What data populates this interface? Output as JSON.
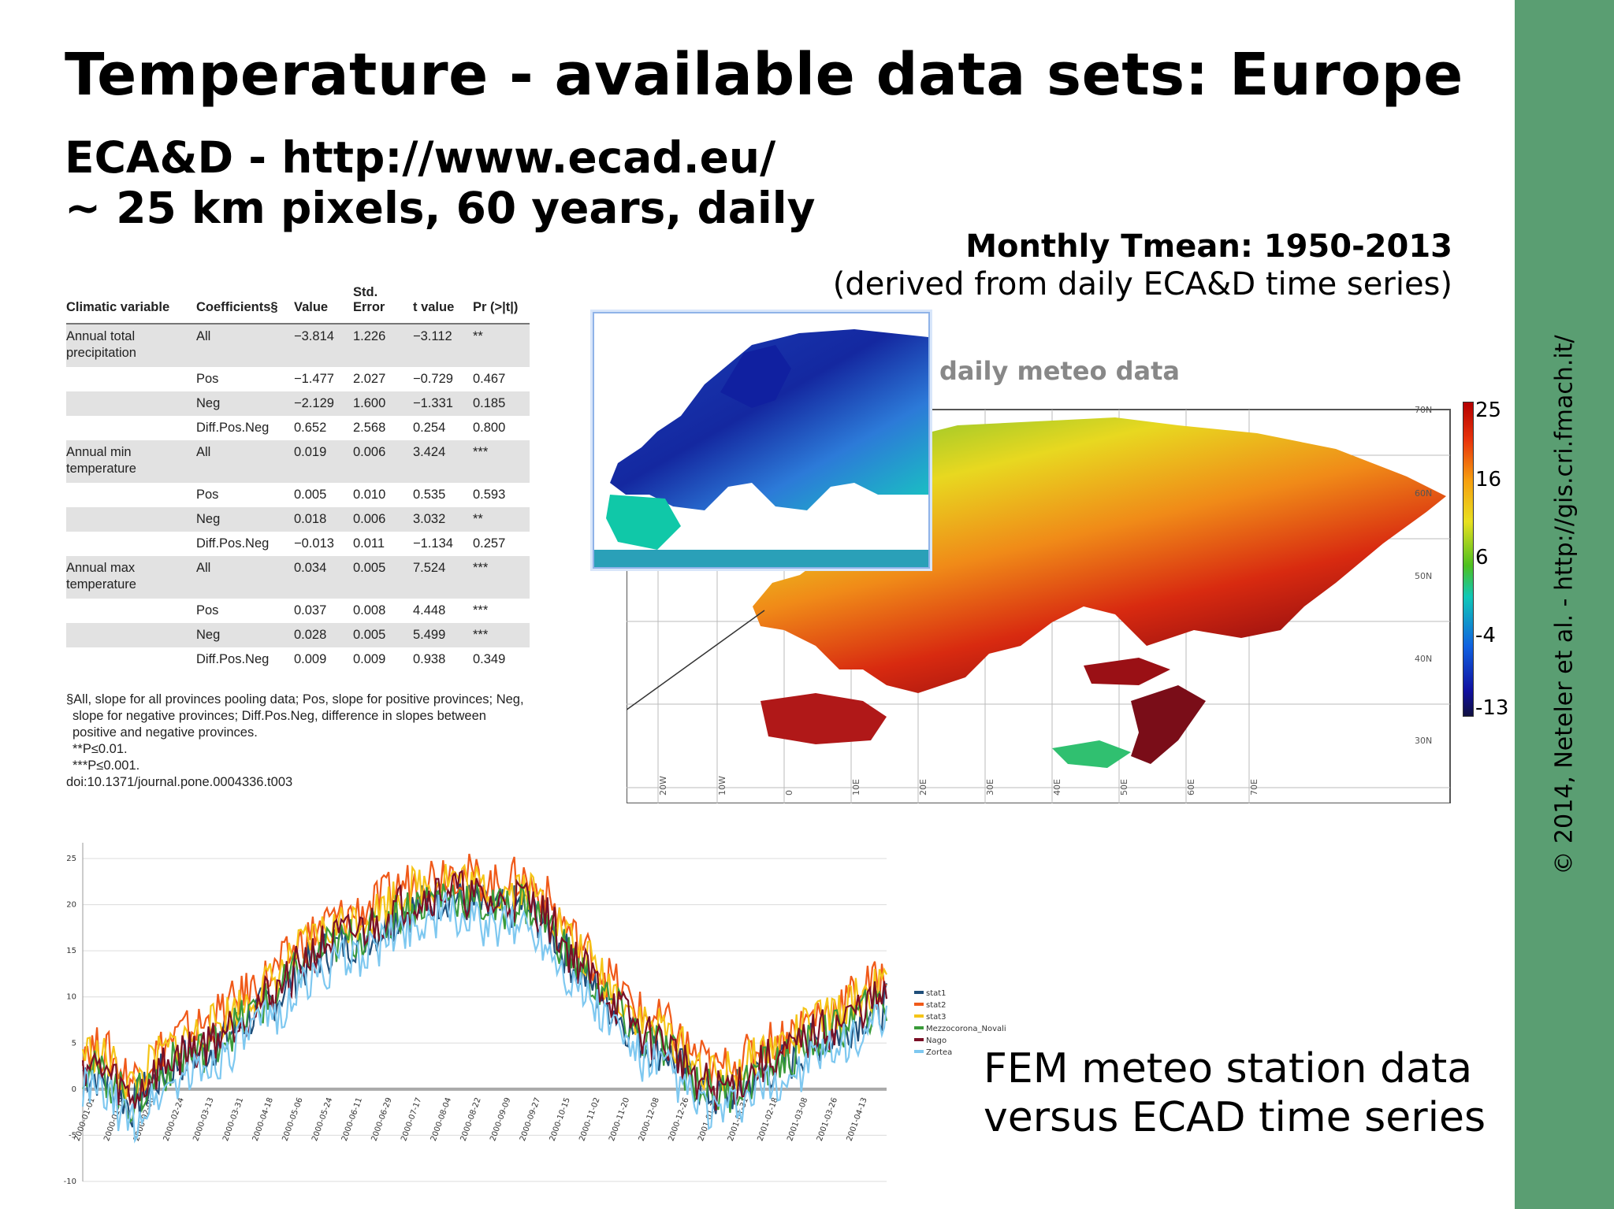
{
  "slide": {
    "title": "Temperature - available data sets: Europe",
    "subtitle_line1": "ECA&D - http://www.ecad.eu/",
    "subtitle_line2": "~ 25 km pixels, 60 years, daily",
    "map_title": "Monthly Tmean: 1950-2013",
    "map_subtitle": "(derived from daily ECA&D time series)",
    "map_overlay_label": "daily meteo data",
    "caption_line1": "FEM meteo station data",
    "caption_line2": "versus ECAD time series",
    "copyright": "© 2014, Neteler et al. - http://gis.cri.fmach.it/",
    "colors": {
      "sidebar": "#5a9e72",
      "accent_text": "#000000"
    }
  },
  "table": {
    "headers": [
      "Climatic variable",
      "Coefficients§",
      "Value",
      "Std. Error",
      "t value",
      "Pr (>|t|)"
    ],
    "rows": [
      {
        "variable": "Annual total precipitation",
        "coef": "All",
        "value": "−3.814",
        "se": "1.226",
        "t": "−3.112",
        "p": "**"
      },
      {
        "variable": "",
        "coef": "Pos",
        "value": "−1.477",
        "se": "2.027",
        "t": "−0.729",
        "p": "0.467"
      },
      {
        "variable": "",
        "coef": "Neg",
        "value": "−2.129",
        "se": "1.600",
        "t": "−1.331",
        "p": "0.185"
      },
      {
        "variable": "",
        "coef": "Diff.Pos.Neg",
        "value": "0.652",
        "se": "2.568",
        "t": "0.254",
        "p": "0.800"
      },
      {
        "variable": "Annual min temperature",
        "coef": "All",
        "value": "0.019",
        "se": "0.006",
        "t": "3.424",
        "p": "***"
      },
      {
        "variable": "",
        "coef": "Pos",
        "value": "0.005",
        "se": "0.010",
        "t": "0.535",
        "p": "0.593"
      },
      {
        "variable": "",
        "coef": "Neg",
        "value": "0.018",
        "se": "0.006",
        "t": "3.032",
        "p": "**"
      },
      {
        "variable": "",
        "coef": "Diff.Pos.Neg",
        "value": "−0.013",
        "se": "0.011",
        "t": "−1.134",
        "p": "0.257"
      },
      {
        "variable": "Annual max temperature",
        "coef": "All",
        "value": "0.034",
        "se": "0.005",
        "t": "7.524",
        "p": "***"
      },
      {
        "variable": "",
        "coef": "Pos",
        "value": "0.037",
        "se": "0.008",
        "t": "4.448",
        "p": "***"
      },
      {
        "variable": "",
        "coef": "Neg",
        "value": "0.028",
        "se": "0.005",
        "t": "5.499",
        "p": "***"
      },
      {
        "variable": "",
        "coef": "Diff.Pos.Neg",
        "value": "0.009",
        "se": "0.009",
        "t": "0.938",
        "p": "0.349"
      }
    ],
    "notes": [
      "§All, slope for all provinces pooling data; Pos, slope for positive provinces; Neg,",
      "slope for negative provinces; Diff.Pos.Neg, difference in slopes between",
      "positive and negative provinces.",
      "**P≤0.01.",
      "***P≤0.001.",
      "doi:10.1371/journal.pone.0004336.t003"
    ]
  },
  "map": {
    "legend_ticks": [
      "25",
      "16",
      "6",
      "-4",
      "-13"
    ],
    "lat_labels": [
      "70N",
      "60N",
      "50N",
      "40N",
      "30N"
    ],
    "lon_labels": [
      "20W",
      "10W",
      "0",
      "10E",
      "20E",
      "30E",
      "40E",
      "50E",
      "60E",
      "70E"
    ]
  },
  "chart_data": {
    "type": "line",
    "ylim": [
      -10,
      25
    ],
    "yticks": [
      "25",
      "20",
      "15",
      "10",
      "5",
      "0",
      "-5",
      "-10"
    ],
    "xticks": [
      "2000-01-01",
      "2000-01-19",
      "2000-02-06",
      "2000-02-24",
      "2000-03-13",
      "2000-03-31",
      "2000-04-18",
      "2000-05-06",
      "2000-05-24",
      "2000-06-11",
      "2000-06-29",
      "2000-07-17",
      "2000-08-04",
      "2000-08-22",
      "2000-09-09",
      "2000-09-27",
      "2000-10-15",
      "2000-11-02",
      "2000-11-20",
      "2000-12-08",
      "2000-12-26",
      "2001-01-13",
      "2001-01-31",
      "2001-02-18",
      "2001-03-08",
      "2001-03-26",
      "2001-04-13"
    ],
    "legend": [
      "stat1",
      "stat2",
      "stat3",
      "Mezzocorona_Novali",
      "Nago",
      "Zortea"
    ],
    "series_colors": [
      "#1f4e79",
      "#f05a1a",
      "#f5c518",
      "#3a9b3a",
      "#7a0f26",
      "#7ec8f0"
    ],
    "base_profile": [
      2,
      1,
      -2,
      1,
      3,
      4,
      6,
      8,
      10,
      13,
      15,
      16,
      17,
      19,
      20,
      21,
      20,
      19,
      20,
      18,
      14,
      11,
      8,
      5,
      4,
      1,
      -1,
      0,
      2,
      3,
      5,
      6,
      8,
      9
    ],
    "series_offsets": [
      0,
      3,
      2.2,
      0.3,
      0.8,
      -1.8
    ]
  }
}
